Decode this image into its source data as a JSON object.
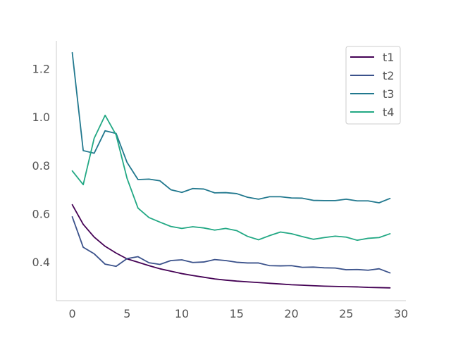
{
  "chart_data": {
    "type": "line",
    "title": "",
    "xlabel": "",
    "ylabel": "",
    "xlim": [
      -1.45,
      30.45
    ],
    "ylim": [
      0.24,
      1.315
    ],
    "grid": false,
    "legend_position": "top-right",
    "xticks": [
      0,
      5,
      10,
      15,
      20,
      25,
      30
    ],
    "xtick_labels": [
      "0",
      "5",
      "10",
      "15",
      "20",
      "25",
      "30"
    ],
    "yticks": [
      0.4,
      0.6,
      0.8,
      1.0,
      1.2
    ],
    "ytick_labels": [
      "0.4",
      "0.6",
      "0.8",
      "1.0",
      "1.2"
    ],
    "x": [
      0,
      1,
      2,
      3,
      4,
      5,
      6,
      7,
      8,
      9,
      10,
      11,
      12,
      13,
      14,
      15,
      16,
      17,
      18,
      19,
      20,
      21,
      22,
      23,
      24,
      25,
      26,
      27,
      28,
      29
    ],
    "series": [
      {
        "name": "t1",
        "color": "#440154",
        "values": [
          0.637,
          0.556,
          0.503,
          0.465,
          0.437,
          0.413,
          0.399,
          0.385,
          0.372,
          0.362,
          0.352,
          0.344,
          0.337,
          0.33,
          0.325,
          0.321,
          0.318,
          0.315,
          0.312,
          0.309,
          0.306,
          0.304,
          0.302,
          0.3,
          0.299,
          0.298,
          0.297,
          0.295,
          0.294,
          0.293
        ]
      },
      {
        "name": "t2",
        "color": "#3b528b",
        "values": [
          0.587,
          0.461,
          0.434,
          0.391,
          0.382,
          0.414,
          0.422,
          0.397,
          0.39,
          0.406,
          0.409,
          0.398,
          0.4,
          0.41,
          0.406,
          0.399,
          0.396,
          0.396,
          0.385,
          0.384,
          0.385,
          0.378,
          0.379,
          0.376,
          0.375,
          0.368,
          0.369,
          0.366,
          0.372,
          0.355
        ]
      },
      {
        "name": "t3",
        "color": "#21788e",
        "values": [
          1.266,
          0.861,
          0.85,
          0.943,
          0.932,
          0.812,
          0.741,
          0.743,
          0.736,
          0.699,
          0.688,
          0.704,
          0.702,
          0.686,
          0.687,
          0.683,
          0.668,
          0.66,
          0.67,
          0.67,
          0.665,
          0.664,
          0.655,
          0.654,
          0.654,
          0.66,
          0.653,
          0.653,
          0.645,
          0.663
        ]
      },
      {
        "name": "t4",
        "color": "#22a884",
        "values": [
          0.777,
          0.72,
          0.912,
          1.007,
          0.926,
          0.746,
          0.623,
          0.584,
          0.565,
          0.547,
          0.539,
          0.546,
          0.541,
          0.532,
          0.539,
          0.53,
          0.506,
          0.492,
          0.509,
          0.524,
          0.517,
          0.505,
          0.494,
          0.501,
          0.507,
          0.503,
          0.49,
          0.498,
          0.501,
          0.517
        ]
      }
    ]
  }
}
